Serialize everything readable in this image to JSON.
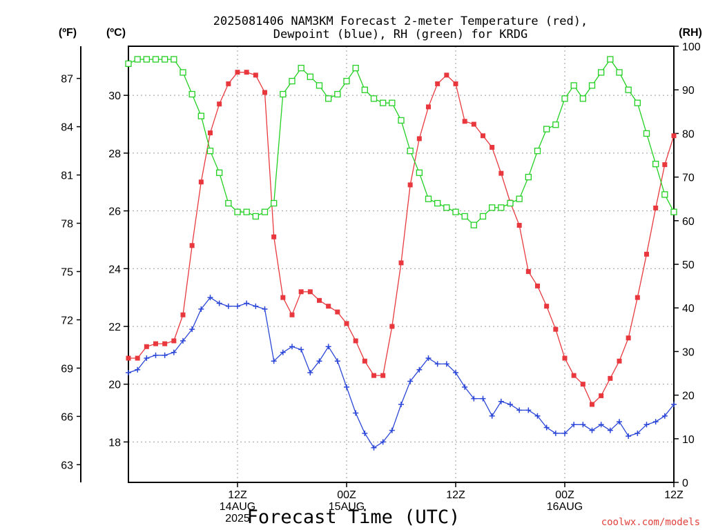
{
  "title_line1": "2025081406 NAM3KM Forecast 2-meter Temperature (red),",
  "title_line2": "Dewpoint (blue), RH (green) for KRDG",
  "units": {
    "f": "(ºF)",
    "c": "(ºC)",
    "rh": "(RH)"
  },
  "x_axis_label": "Forecast Time (UTC)",
  "credit": "coolwx.com/models",
  "x_ticks": [
    {
      "hour": 12,
      "lines": [
        "12Z",
        "14AUG",
        "2025"
      ]
    },
    {
      "hour": 24,
      "lines": [
        "00Z",
        "15AUG"
      ]
    },
    {
      "hour": 36,
      "lines": [
        "12Z"
      ]
    },
    {
      "hour": 48,
      "lines": [
        "00Z",
        "16AUG"
      ]
    },
    {
      "hour": 60,
      "lines": [
        "12Z"
      ]
    }
  ],
  "colors": {
    "temperature": "#e8383d",
    "dewpoint": "#2a46d8",
    "rh": "#22d022"
  },
  "chart_data": {
    "type": "line",
    "x_unit": "forecast hour from 2025081406",
    "xlim": [
      0,
      60
    ],
    "ylim_c": [
      16.6,
      31.7
    ],
    "ylim_rh": [
      0,
      100
    ],
    "ylim_f": [
      61.9,
      89.0
    ],
    "y_ticks_c": [
      18,
      20,
      22,
      24,
      26,
      28,
      30
    ],
    "y_ticks_f": [
      63,
      66,
      69,
      72,
      75,
      78,
      81,
      84,
      87
    ],
    "y_ticks_rh": [
      0,
      10,
      20,
      30,
      40,
      50,
      60,
      70,
      80,
      90,
      100
    ],
    "x": [
      0,
      1,
      2,
      3,
      4,
      5,
      6,
      7,
      8,
      9,
      10,
      11,
      12,
      13,
      14,
      15,
      16,
      17,
      18,
      19,
      20,
      21,
      22,
      23,
      24,
      25,
      26,
      27,
      28,
      29,
      30,
      31,
      32,
      33,
      34,
      35,
      36,
      37,
      38,
      39,
      40,
      41,
      42,
      43,
      44,
      45,
      46,
      47,
      48,
      49,
      50,
      51,
      52,
      53,
      54,
      55,
      56,
      57,
      58,
      59,
      60
    ],
    "series": [
      {
        "name": "Temperature",
        "axis": "C",
        "marker": "filled-square",
        "values": [
          20.9,
          20.9,
          21.3,
          21.4,
          21.4,
          21.5,
          22.4,
          24.8,
          27.0,
          28.7,
          29.7,
          30.4,
          30.8,
          30.8,
          30.7,
          30.1,
          25.1,
          23.0,
          22.4,
          23.2,
          23.2,
          22.9,
          22.7,
          22.5,
          22.1,
          21.5,
          20.8,
          20.3,
          20.3,
          22.0,
          24.2,
          26.9,
          28.5,
          29.6,
          30.4,
          30.7,
          30.4,
          29.1,
          29.0,
          28.6,
          28.2,
          27.3,
          26.3,
          25.5,
          23.9,
          23.4,
          22.7,
          21.9,
          20.9,
          20.3,
          20.0,
          19.3,
          19.6,
          20.2,
          20.8,
          21.6,
          23.0,
          24.5,
          26.1,
          27.6,
          28.6
        ]
      },
      {
        "name": "Dewpoint",
        "axis": "C",
        "marker": "plus",
        "values": [
          20.4,
          20.5,
          20.9,
          21.0,
          21.0,
          21.1,
          21.5,
          21.9,
          22.6,
          23.0,
          22.8,
          22.7,
          22.7,
          22.8,
          22.7,
          22.6,
          20.8,
          21.1,
          21.3,
          21.2,
          20.4,
          20.8,
          21.3,
          20.8,
          19.9,
          19.0,
          18.3,
          17.8,
          18.0,
          18.4,
          19.3,
          20.1,
          20.5,
          20.9,
          20.7,
          20.7,
          20.4,
          19.9,
          19.5,
          19.5,
          18.9,
          19.4,
          19.3,
          19.1,
          19.1,
          18.9,
          18.5,
          18.3,
          18.3,
          18.6,
          18.6,
          18.4,
          18.6,
          18.4,
          18.7,
          18.2,
          18.3,
          18.6,
          18.7,
          18.9,
          19.3
        ]
      },
      {
        "name": "RH",
        "axis": "RH",
        "marker": "open-square",
        "values": [
          96,
          97,
          97,
          97,
          97,
          97,
          94,
          89,
          84,
          76,
          71,
          64,
          62,
          62,
          61,
          62,
          64,
          89,
          92,
          95,
          93,
          91,
          88,
          89,
          92,
          95,
          90,
          88,
          87,
          87,
          83,
          76,
          71,
          65,
          64,
          63,
          62,
          61,
          59,
          61,
          63,
          63,
          64,
          65,
          70,
          76,
          81,
          82,
          88,
          91,
          88,
          91,
          94,
          97,
          94,
          90,
          87,
          80,
          73,
          66,
          62
        ]
      }
    ]
  }
}
